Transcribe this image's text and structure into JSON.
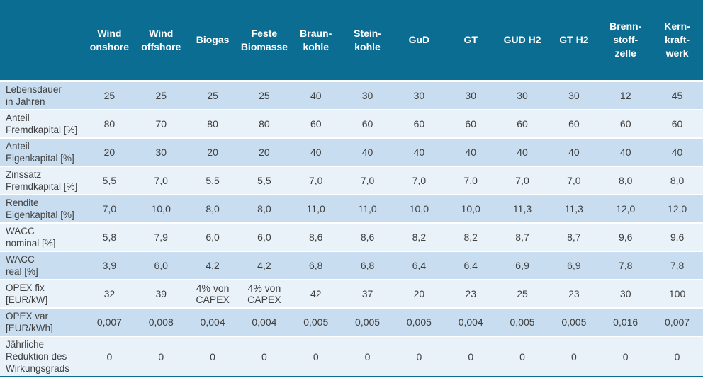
{
  "colors": {
    "header_background": "#0c6d92",
    "row_odd": "#c8ddef",
    "row_even": "#e9f1f9",
    "header_text": "#ffffff",
    "body_text": "#3f3f3f",
    "bottom_rule": "#0c6d92"
  },
  "chart_data": {
    "type": "table",
    "columns": [
      "Wind\nonshore",
      "Wind\noffshore",
      "Biogas",
      "Feste\nBiomasse",
      "Braun-\nkohle",
      "Stein-\nkohle",
      "GuD",
      "GT",
      "GUD H2",
      "GT H2",
      "Brenn-\nstoff-\nzelle",
      "Kern-\nkraft-\nwerk"
    ],
    "rows": [
      {
        "label": "Lebensdauer\nin Jahren",
        "values": [
          "25",
          "25",
          "25",
          "25",
          "40",
          "30",
          "30",
          "30",
          "30",
          "30",
          "12",
          "45"
        ]
      },
      {
        "label": "Anteil\nFremdkapital [%]",
        "values": [
          "80",
          "70",
          "80",
          "80",
          "60",
          "60",
          "60",
          "60",
          "60",
          "60",
          "60",
          "60"
        ]
      },
      {
        "label": "Anteil\nEigenkapital [%]",
        "values": [
          "20",
          "30",
          "20",
          "20",
          "40",
          "40",
          "40",
          "40",
          "40",
          "40",
          "40",
          "40"
        ]
      },
      {
        "label": "Zinssatz\nFremdkapital [%]",
        "values": [
          "5,5",
          "7,0",
          "5,5",
          "5,5",
          "7,0",
          "7,0",
          "7,0",
          "7,0",
          "7,0",
          "7,0",
          "8,0",
          "8,0"
        ]
      },
      {
        "label": "Rendite\nEigenkapital [%]",
        "values": [
          "7,0",
          "10,0",
          "8,0",
          "8,0",
          "11,0",
          "11,0",
          "10,0",
          "10,0",
          "11,3",
          "11,3",
          "12,0",
          "12,0"
        ]
      },
      {
        "label": "WACC\nnominal [%]",
        "values": [
          "5,8",
          "7,9",
          "6,0",
          "6,0",
          "8,6",
          "8,6",
          "8,2",
          "8,2",
          "8,7",
          "8,7",
          "9,6",
          "9,6"
        ]
      },
      {
        "label": "WACC\nreal [%]",
        "values": [
          "3,9",
          "6,0",
          "4,2",
          "4,2",
          "6,8",
          "6,8",
          "6,4",
          "6,4",
          "6,9",
          "6,9",
          "7,8",
          "7,8"
        ]
      },
      {
        "label": "OPEX fix\n[EUR/kW]",
        "values": [
          "32",
          "39",
          "4% von\nCAPEX",
          "4% von\nCAPEX",
          "42",
          "37",
          "20",
          "23",
          "25",
          "23",
          "30",
          "100"
        ]
      },
      {
        "label": "OPEX var\n[EUR/kWh]",
        "values": [
          "0,007",
          "0,008",
          "0,004",
          "0,004",
          "0,005",
          "0,005",
          "0,005",
          "0,004",
          "0,005",
          "0,005",
          "0,016",
          "0,007"
        ]
      },
      {
        "label": "Jährliche\nReduktion des\nWirkungsgrads",
        "values": [
          "0",
          "0",
          "0",
          "0",
          "0",
          "0",
          "0",
          "0",
          "0",
          "0",
          "0",
          "0"
        ]
      }
    ]
  }
}
